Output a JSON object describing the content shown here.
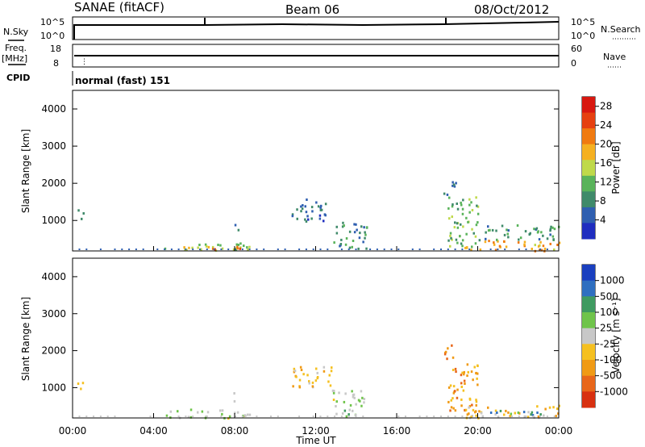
{
  "header": {
    "station": "SANAE (fitACF)",
    "beam": "Beam 06",
    "date": "08/Oct/2012"
  },
  "aux_panels": {
    "nsky_label": "N.Sky",
    "nsearch_label": "N.Search",
    "nsky_ticks": [
      "10^5",
      "10^0"
    ],
    "nsearch_ticks": [
      "10^5",
      "10^0"
    ],
    "freq_label_1": "Freq.",
    "freq_label_2": "[MHz]",
    "freq_ticks": [
      "18",
      "8"
    ],
    "nave_label": "Nave",
    "nave_ticks": [
      "60",
      "0"
    ],
    "cpid_label": "CPID",
    "cpid_value": "normal (fast) 151"
  },
  "colors": {
    "power": [
      "#1f2dbf",
      "#2f5fb0",
      "#3f8a6a",
      "#59b35a",
      "#bfd94a",
      "#f5b020",
      "#f07a10",
      "#e64010",
      "#d81810"
    ],
    "velocity": [
      "#1a3fbf",
      "#2f6fc0",
      "#3f9a60",
      "#6fc44a",
      "#c8c8c8",
      "#f5c020",
      "#f09a15",
      "#e8661a",
      "#d83010"
    ]
  },
  "chart_data": [
    {
      "type": "heatmap",
      "panel": "power",
      "ylabel": "Slant Range [km]",
      "yticks": [
        "1000",
        "2000",
        "3000",
        "4000"
      ],
      "ylim": [
        180,
        4500
      ],
      "xticks": [
        "00:00",
        "04:00",
        "08:00",
        "12:00",
        "16:00",
        "20:00",
        "00:00"
      ],
      "xlim_hours": [
        0,
        24
      ],
      "colorbar": {
        "label": "Power [dB]",
        "ticks": [
          "4",
          "8",
          "12",
          "16",
          "20",
          "24",
          "28"
        ],
        "range": [
          0,
          30
        ]
      },
      "regions": [
        {
          "t": [
            0.2,
            0.5
          ],
          "r": [
            950,
            1350
          ],
          "value": 6
        },
        {
          "t": [
            4.5,
            8.8
          ],
          "r": [
            200,
            450
          ],
          "value": 14
        },
        {
          "t": [
            6.5,
            8.5
          ],
          "r": [
            200,
            320
          ],
          "value": 22
        },
        {
          "t": [
            7.9,
            8.2
          ],
          "r": [
            650,
            950
          ],
          "value": 8
        },
        {
          "t": [
            10.8,
            12.8
          ],
          "r": [
            1000,
            1600
          ],
          "value": 6
        },
        {
          "t": [
            12.8,
            14.5
          ],
          "r": [
            250,
            1000
          ],
          "value": 8
        },
        {
          "t": [
            18.3,
            18.9
          ],
          "r": [
            1700,
            2200
          ],
          "value": 6
        },
        {
          "t": [
            18.5,
            20.0
          ],
          "r": [
            300,
            1700
          ],
          "value": 12
        },
        {
          "t": [
            19.3,
            24.0
          ],
          "r": [
            200,
            500
          ],
          "value": 20
        },
        {
          "t": [
            20.0,
            24.0
          ],
          "r": [
            500,
            900
          ],
          "value": 8
        }
      ]
    },
    {
      "type": "heatmap",
      "panel": "velocity",
      "ylabel": "Slant Range [km]",
      "yticks": [
        "1000",
        "2000",
        "3000",
        "4000"
      ],
      "ylim": [
        180,
        4500
      ],
      "xticks": [
        "00:00",
        "04:00",
        "08:00",
        "12:00",
        "16:00",
        "20:00",
        "00:00"
      ],
      "xlabel": "Time UT",
      "xlim_hours": [
        0,
        24
      ],
      "colorbar": {
        "label": "Velocity [m s^-1]",
        "ticks": [
          "1000",
          "500",
          "100",
          "25",
          "-25",
          "-100",
          "-500",
          "-1000"
        ],
        "range": [
          -1200,
          1200
        ]
      },
      "regions": [
        {
          "t": [
            0.2,
            0.5
          ],
          "r": [
            950,
            1350
          ],
          "value": -100
        },
        {
          "t": [
            4.5,
            8.8
          ],
          "r": [
            200,
            450
          ],
          "value": 100
        },
        {
          "t": [
            7.9,
            8.2
          ],
          "r": [
            650,
            950
          ],
          "value": -200
        },
        {
          "t": [
            10.8,
            12.8
          ],
          "r": [
            1000,
            1600
          ],
          "value": -300
        },
        {
          "t": [
            12.8,
            14.5
          ],
          "r": [
            250,
            1000
          ],
          "value": 150
        },
        {
          "t": [
            18.3,
            18.9
          ],
          "r": [
            1700,
            2200
          ],
          "value": -700
        },
        {
          "t": [
            18.5,
            20.0
          ],
          "r": [
            300,
            1700
          ],
          "value": -500
        },
        {
          "t": [
            19.3,
            24.0
          ],
          "r": [
            200,
            550
          ],
          "value": -300
        },
        {
          "t": [
            20.5,
            23.5
          ],
          "r": [
            250,
            400
          ],
          "value": 600
        }
      ]
    }
  ]
}
